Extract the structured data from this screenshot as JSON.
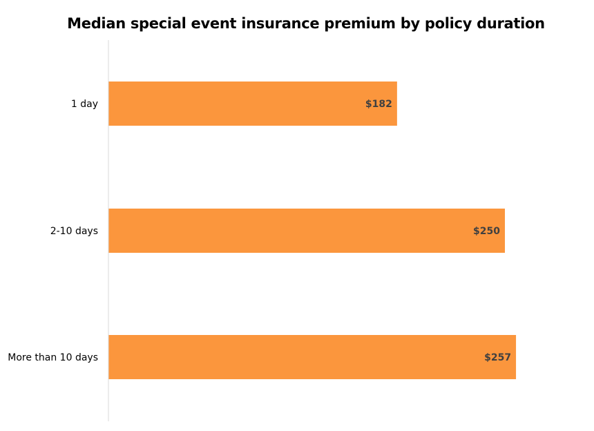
{
  "chart_data": {
    "type": "bar",
    "orientation": "horizontal",
    "title": "Median special event insurance premium by policy duration",
    "categories": [
      "1 day",
      "2-10 days",
      "More than 10 days"
    ],
    "values": [
      182,
      250,
      257
    ],
    "data_labels": [
      "$182",
      "$250",
      "$257"
    ],
    "xlabel": "",
    "ylabel": "",
    "xlim": [
      0,
      300
    ],
    "grid": false,
    "legend": "none",
    "colors": {
      "bar": "#FB963D",
      "label": "#404040",
      "axis": "#D9D9D9"
    }
  }
}
